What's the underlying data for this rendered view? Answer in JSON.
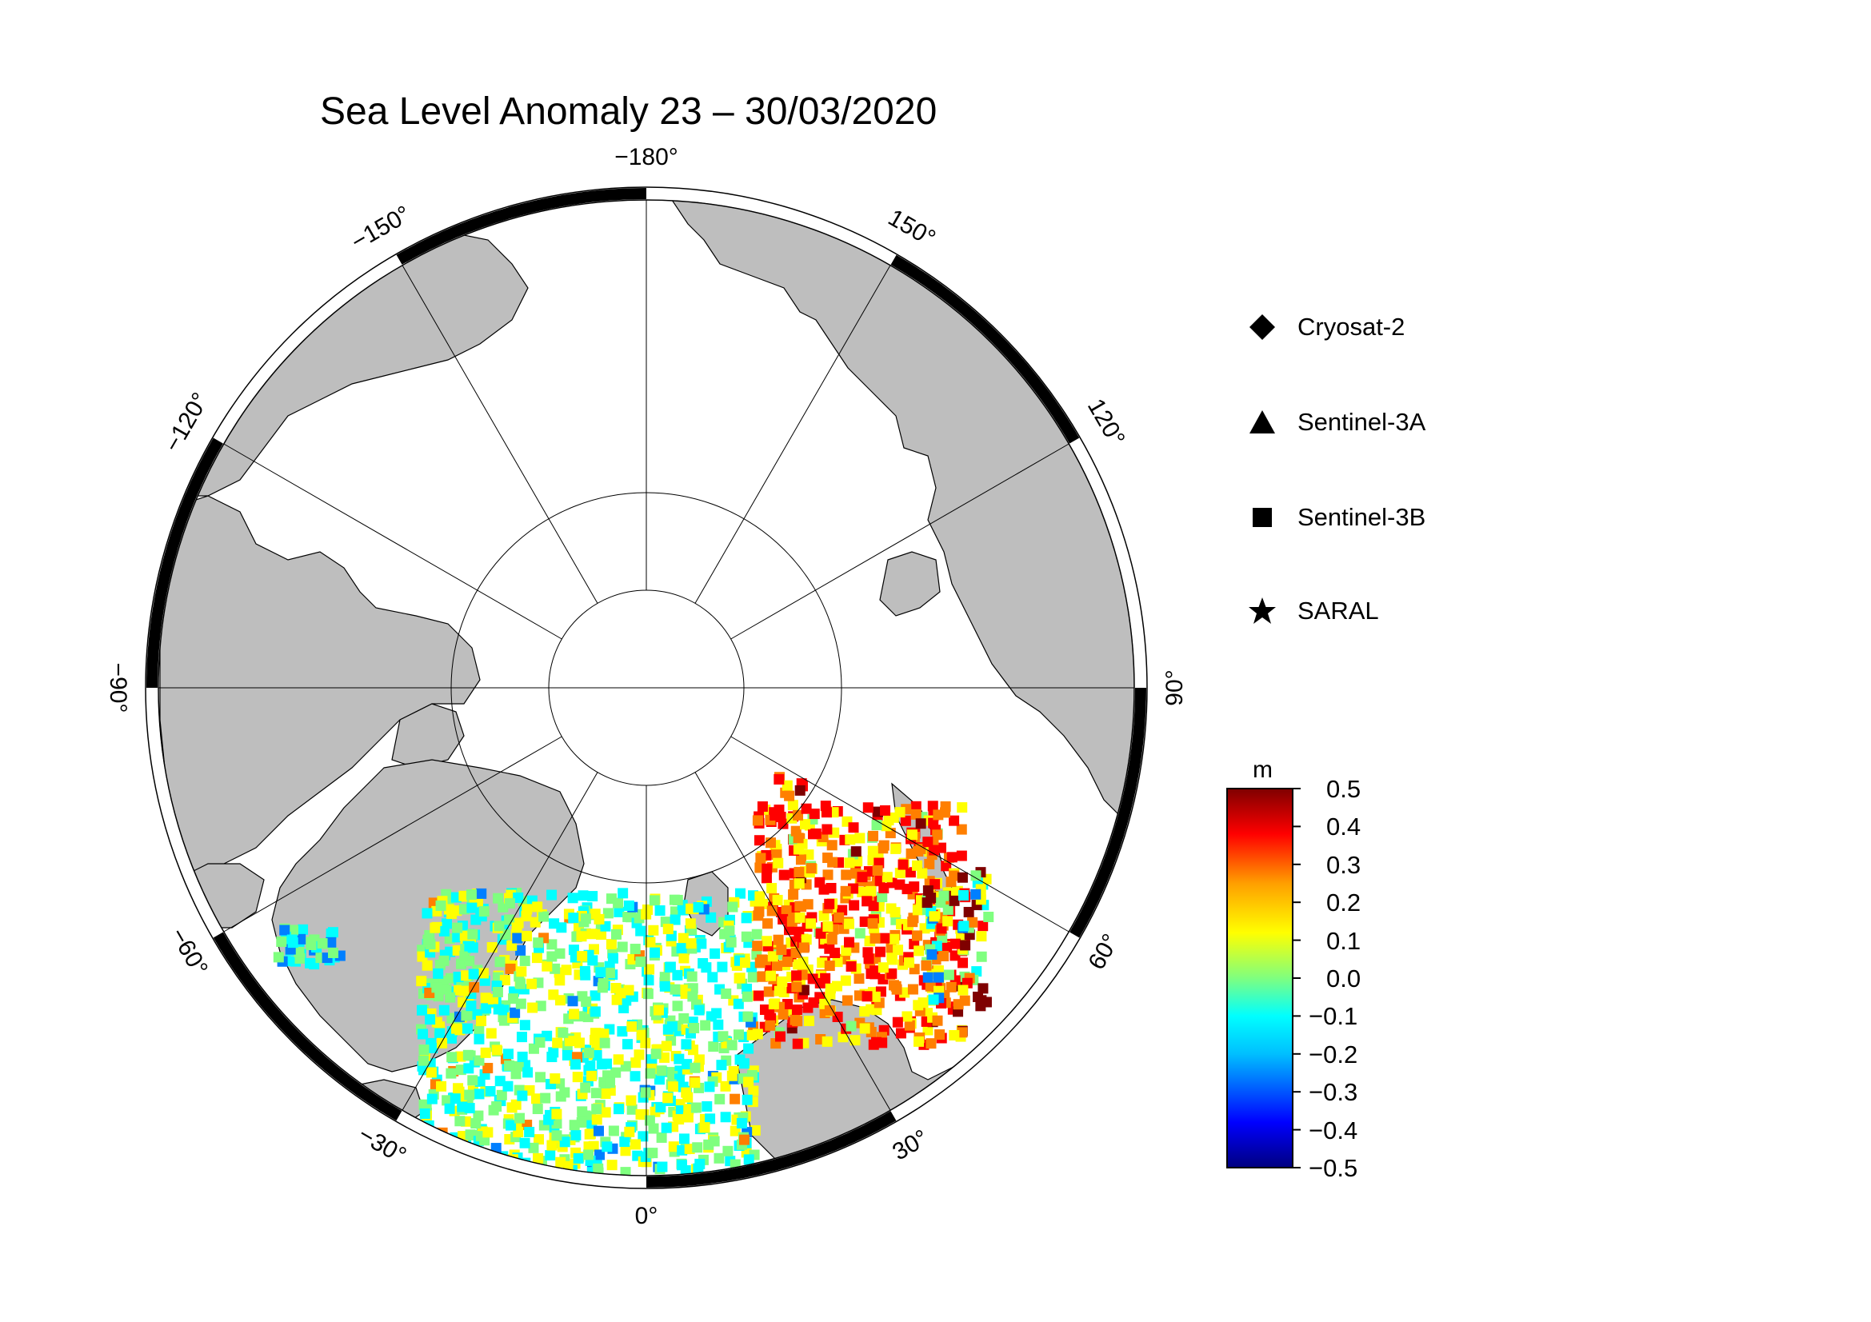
{
  "title": "Sea Level Anomaly 23 – 30/03/2020",
  "longitude_labels": [
    {
      "text": "−180°",
      "lon": 180
    },
    {
      "text": "150°",
      "lon": 150
    },
    {
      "text": "120°",
      "lon": 120
    },
    {
      "text": "90°",
      "lon": 90
    },
    {
      "text": "60°",
      "lon": 60
    },
    {
      "text": "30°",
      "lon": 30
    },
    {
      "text": "0°",
      "lon": 0
    },
    {
      "text": "−30°",
      "lon": -30
    },
    {
      "text": "−60°",
      "lon": -60
    },
    {
      "text": "−90°",
      "lon": -90
    },
    {
      "text": "−120°",
      "lon": -120
    },
    {
      "text": "−150°",
      "lon": -150
    }
  ],
  "legend": {
    "items": [
      {
        "label": "Cryosat-2",
        "icon": "diamond-icon"
      },
      {
        "label": "Sentinel-3A",
        "icon": "triangle-icon"
      },
      {
        "label": "Sentinel-3B",
        "icon": "square-icon"
      },
      {
        "label": "SARAL",
        "icon": "star-icon"
      }
    ]
  },
  "colorbar": {
    "unit": "m",
    "min": -0.5,
    "max": 0.5,
    "ticks": [
      "0.5",
      "0.4",
      "0.3",
      "0.2",
      "0.1",
      "0.0",
      "−0.1",
      "−0.2",
      "−0.3",
      "−0.4",
      "−0.5"
    ],
    "colormap": [
      "#00007f",
      "#0000ff",
      "#007fff",
      "#00ffff",
      "#7fff7f",
      "#ffff00",
      "#ff7f00",
      "#ff0000",
      "#7f0000"
    ]
  },
  "colors": {
    "land": "#bebebe",
    "ocean": "#ffffff",
    "frame": "#000000",
    "grid": "#000000"
  }
}
